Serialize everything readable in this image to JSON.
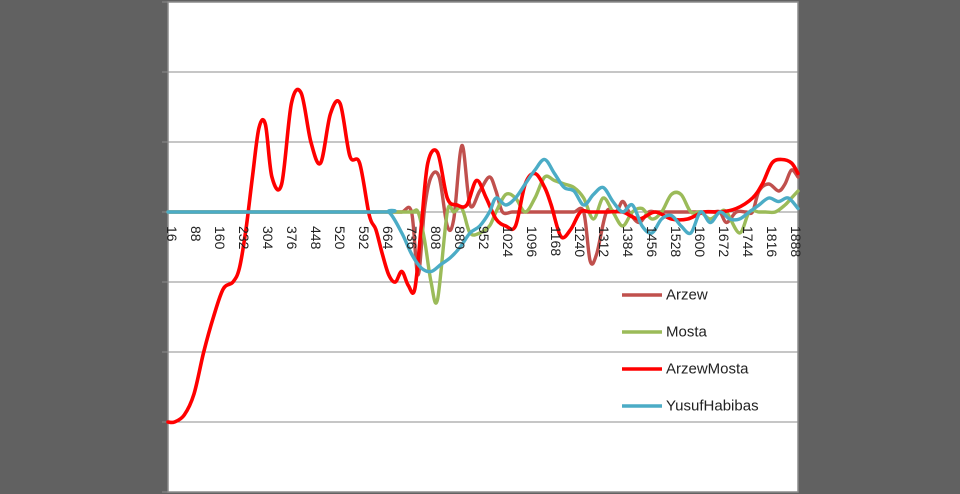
{
  "chart_data": {
    "type": "line",
    "title": "",
    "xlabel": "",
    "ylabel": "",
    "x_ticks": [
      "16",
      "88",
      "160",
      "232",
      "304",
      "376",
      "448",
      "520",
      "592",
      "664",
      "736",
      "808",
      "880",
      "952",
      "1024",
      "1096",
      "1168",
      "1240",
      "1312",
      "1384",
      "1456",
      "1528",
      "1600",
      "1672",
      "1744",
      "1816",
      "1888"
    ],
    "xlim": [
      0,
      1940
    ],
    "ylim": [
      -4,
      3
    ],
    "y_gridlines": [
      -4,
      -3,
      -2,
      -1,
      0,
      1,
      2,
      3
    ],
    "y_tick_labels": "none",
    "grid": true,
    "legend_position": "right",
    "colors": {
      "background": "#616161",
      "plot_area": "#ffffff",
      "gridline": "#8c8c8c",
      "axis": "#8c8c8c"
    },
    "series": [
      {
        "name": "Arzew",
        "color": "#c0504d",
        "x": [
          0,
          640,
          680,
          720,
          750,
          770,
          790,
          810,
          835,
          860,
          880,
          905,
          930,
          960,
          990,
          1010,
          1030,
          1060,
          1090,
          1110,
          1140,
          1160,
          1190,
          1220,
          1250,
          1280,
          1300,
          1320,
          1350,
          1380,
          1400,
          1420,
          1450,
          1480,
          1500,
          1520,
          1550,
          1580,
          1600,
          1620,
          1650,
          1680,
          1700,
          1720,
          1750,
          1780,
          1800,
          1820,
          1850,
          1880,
          1900,
          1920,
          1940
        ],
        "y": [
          0,
          0,
          0,
          0,
          0,
          -0.9,
          0.05,
          0.5,
          0.5,
          -0.2,
          -0.1,
          0.95,
          0.1,
          0.3,
          0.5,
          0.3,
          0,
          0,
          0,
          0,
          0,
          0,
          0,
          0,
          0,
          0,
          -0.7,
          -0.6,
          0,
          0,
          0.15,
          0,
          -0.15,
          0,
          0,
          0,
          0,
          0,
          0,
          0,
          0,
          0,
          0,
          -0.15,
          0,
          0,
          0,
          0.3,
          0.4,
          0.3,
          0.4,
          0.6,
          0.5
        ]
      },
      {
        "name": "Mosta",
        "color": "#9bbb59",
        "x": [
          0,
          700,
          750,
          770,
          790,
          810,
          830,
          860,
          880,
          905,
          930,
          960,
          990,
          1010,
          1040,
          1070,
          1100,
          1130,
          1160,
          1190,
          1220,
          1250,
          1280,
          1310,
          1340,
          1370,
          1400,
          1430,
          1460,
          1490,
          1520,
          1550,
          1580,
          1610,
          1640,
          1670,
          1700,
          1720,
          1760,
          1790,
          1820,
          1840,
          1870,
          1900,
          1920,
          1940
        ],
        "y": [
          0,
          0,
          0,
          0,
          -0.4,
          -1.0,
          -1.25,
          0,
          0,
          0.05,
          -0.3,
          -0.3,
          -0.2,
          0,
          0.25,
          0.2,
          0,
          0.2,
          0.5,
          0.45,
          0.4,
          0.35,
          0.2,
          -0.1,
          0.2,
          0,
          -0.2,
          0,
          0.05,
          -0.1,
          0,
          0.25,
          0.25,
          0,
          0,
          -0.1,
          0,
          0,
          -0.3,
          0,
          0,
          0,
          0,
          0.1,
          0.2,
          0.3
        ]
      },
      {
        "name": "ArzewMosta",
        "color": "#ff0000",
        "x": [
          0,
          20,
          50,
          80,
          110,
          140,
          170,
          200,
          220,
          240,
          260,
          280,
          300,
          320,
          350,
          380,
          410,
          440,
          470,
          500,
          530,
          560,
          590,
          620,
          640,
          660,
          680,
          700,
          720,
          740,
          760,
          780,
          800,
          830,
          860,
          890,
          920,
          950,
          980,
          1010,
          1040,
          1070,
          1100,
          1130,
          1160,
          1180,
          1210,
          1240,
          1270,
          1300,
          1350,
          1400,
          1450,
          1500,
          1550,
          1600,
          1650,
          1700,
          1750,
          1800,
          1830,
          1860,
          1890,
          1920,
          1940
        ],
        "y": [
          -3,
          -3,
          -2.9,
          -2.6,
          -2,
          -1.5,
          -1.1,
          -1,
          -0.8,
          -0.25,
          0.5,
          1.2,
          1.25,
          0.5,
          0.4,
          1.55,
          1.7,
          1.0,
          0.7,
          1.4,
          1.55,
          0.8,
          0.7,
          -0.05,
          -0.25,
          -0.6,
          -0.9,
          -1.0,
          -0.85,
          -1.05,
          -1.1,
          -0.2,
          0.7,
          0.85,
          0.2,
          0.1,
          0.1,
          0.45,
          0.2,
          -0.1,
          -0.2,
          -0.2,
          0.4,
          0.55,
          0.35,
          0.1,
          -0.35,
          -0.25,
          0,
          0,
          0,
          0,
          -0.1,
          0,
          -0.1,
          -0.1,
          0,
          0,
          0.05,
          0.2,
          0.4,
          0.7,
          0.75,
          0.7,
          0.55
        ]
      },
      {
        "name": "YusufHabibas",
        "color": "#4bacc6",
        "x": [
          0,
          640,
          680,
          720,
          750,
          780,
          810,
          840,
          870,
          900,
          930,
          960,
          990,
          1010,
          1040,
          1070,
          1100,
          1130,
          1160,
          1190,
          1220,
          1250,
          1280,
          1310,
          1340,
          1370,
          1400,
          1430,
          1460,
          1490,
          1520,
          1550,
          1580,
          1610,
          1640,
          1670,
          1700,
          1730,
          1760,
          1790,
          1820,
          1850,
          1880,
          1910,
          1940
        ],
        "y": [
          0,
          0,
          0,
          -0.3,
          -0.6,
          -0.8,
          -0.85,
          -0.75,
          -0.65,
          -0.5,
          -0.3,
          -0.2,
          0,
          0.2,
          0.1,
          0.2,
          0.4,
          0.6,
          0.75,
          0.55,
          0.35,
          0.3,
          0.1,
          0.25,
          0.35,
          0.15,
          0,
          0.1,
          -0.2,
          -0.3,
          -0.1,
          -0.05,
          -0.2,
          -0.3,
          0,
          -0.15,
          0,
          -0.1,
          -0.1,
          0,
          0.1,
          0.2,
          0.15,
          0.2,
          0.05
        ]
      }
    ]
  }
}
